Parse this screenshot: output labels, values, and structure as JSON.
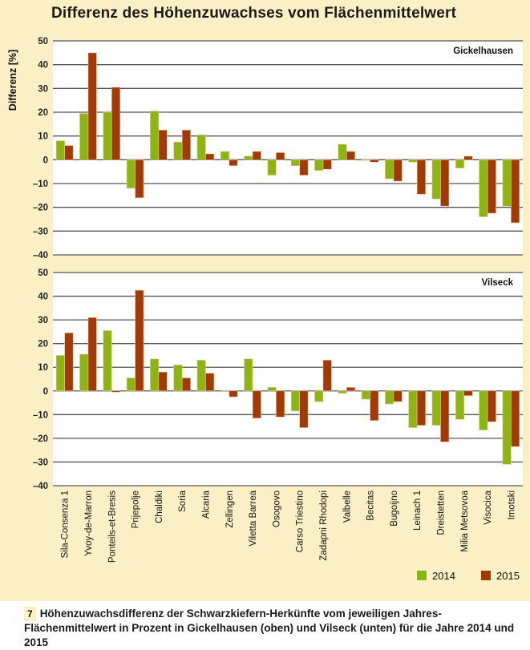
{
  "chart_data": {
    "type": "bar",
    "title": "Differenz des Höhenzuwachses vom Flächenmittelwert",
    "ylabel": "Differenz [%]",
    "ylim": [
      -40,
      50
    ],
    "yticks": [
      50,
      40,
      30,
      20,
      10,
      0,
      -10,
      -20,
      -30,
      -40
    ],
    "ytick_labels": [
      "50",
      "40",
      "30",
      "20",
      "10",
      "0",
      "–10",
      "–20",
      "–30",
      "–40"
    ],
    "grid": true,
    "legend_position": "bottom-right",
    "categories": [
      "Sila-Consenza 1",
      "Yvoy-de-Marron",
      "Ponteils-et-Bresis",
      "Prijepolje",
      "Chaldiki",
      "Soria",
      "Alcaria",
      "Zellingen",
      "Viletta Barrea",
      "Osogovo",
      "Carso Triestino",
      "Zadapni Rhodopi",
      "Valbelle",
      "Becitas",
      "Bugoijno",
      "Leinach 1",
      "Dreistetten",
      "Milia Metsovoa",
      "Visocica",
      "Imotski"
    ],
    "series_colors": {
      "2014": "#8db511",
      "2015": "#a33a05"
    },
    "panels": [
      {
        "name": "Gickelhausen",
        "series": [
          {
            "name": "2014",
            "values": [
              8,
              19.5,
              20,
              -12,
              20.5,
              7.5,
              10.5,
              3.5,
              1.5,
              -6.5,
              -2.5,
              -4.5,
              6.5,
              0,
              -8,
              -1,
              -16.5,
              -3.5,
              -24,
              -19.5
            ]
          },
          {
            "name": "2015",
            "values": [
              6,
              45,
              30.5,
              -16,
              12.5,
              12.5,
              2.5,
              -2.5,
              3.5,
              3,
              -6.5,
              -4,
              3.5,
              -1,
              -9,
              -14.5,
              -19.5,
              1.5,
              -22.5,
              -26.5
            ]
          }
        ]
      },
      {
        "name": "Vilseck",
        "series": [
          {
            "name": "2014",
            "values": [
              15,
              15.5,
              25.5,
              5.5,
              13.5,
              11,
              13,
              0.3,
              13.5,
              1.5,
              -8.5,
              -4.5,
              -1,
              -3.5,
              -5.5,
              -15.5,
              -14.5,
              -12,
              -16.5,
              -31
            ]
          },
          {
            "name": "2015",
            "values": [
              24.5,
              31,
              -0.5,
              42.5,
              8,
              5.5,
              7.5,
              -2.5,
              -11.5,
              -11,
              -15.5,
              13,
              1.5,
              -12.5,
              -4.5,
              -14.5,
              -21.5,
              -2,
              -13,
              -23.5
            ]
          }
        ]
      }
    ],
    "legend": [
      "2014",
      "2015"
    ]
  },
  "caption": {
    "number": "7",
    "text": "Höhenzuwachsdifferenz der Schwarzkiefern-Herkünfte vom jeweiligen Jahres-Flächenmittelwert in Prozent in Gickelhausen (oben) und Vilseck (unten) für die Jahre 2014 und 2015"
  }
}
